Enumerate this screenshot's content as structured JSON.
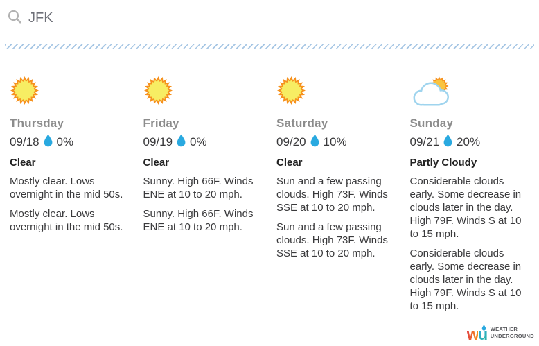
{
  "search": {
    "value": "JFK",
    "icon": "magnifier"
  },
  "days": [
    {
      "name": "Thursday",
      "date": "09/18",
      "precip": "0%",
      "condition": "Clear",
      "icon": "sunny",
      "paragraphs": [
        "Mostly clear. Lows overnight in the mid 50s.",
        "Mostly clear. Lows overnight in the mid 50s."
      ]
    },
    {
      "name": "Friday",
      "date": "09/19",
      "precip": "0%",
      "condition": "Clear",
      "icon": "sunny",
      "paragraphs": [
        "Sunny. High 66F. Winds ENE at 10 to 20 mph.",
        "Sunny. High 66F. Winds ENE at 10 to 20 mph."
      ]
    },
    {
      "name": "Saturday",
      "date": "09/20",
      "precip": "10%",
      "condition": "Clear",
      "icon": "sunny",
      "paragraphs": [
        "Sun and a few passing clouds. High 73F. Winds SSE at 10 to 20 mph.",
        "Sun and a few passing clouds. High 73F. Winds SSE at 10 to 20 mph."
      ]
    },
    {
      "name": "Sunday",
      "date": "09/21",
      "precip": "20%",
      "condition": "Partly Cloudy",
      "icon": "partly-cloudy",
      "paragraphs": [
        "Considerable clouds early. Some decrease in clouds later in the day. High 79F. Winds S at 10 to 15 mph.",
        "Considerable clouds early. Some decrease in clouds later in the day. High 79F. Winds S at 10 to 15 mph."
      ]
    }
  ],
  "footer": {
    "mark_w": "w",
    "mark_u": "u",
    "brand_line1": "WEATHER",
    "brand_line2": "UNDERGROUND"
  },
  "icons": {
    "search": "magnifier",
    "precipitation": "raindrop",
    "clear": "sun-burst",
    "partly_cloudy": "sun-behind-cloud"
  },
  "colors": {
    "accent": "#29a9e0",
    "sun_ray": "#f6921e",
    "sun_core": "#f7ed63",
    "partly_sun_core": "#f9c440",
    "cloud_stroke": "#9fd4ee",
    "divider": "#a6c6e4",
    "day_label": "#8c8c8c",
    "text": "#3a3a3c",
    "heading": "#222222",
    "search_text": "#6e7078",
    "search_icon": "#b3b3b3",
    "logo_text": "#55565a",
    "logo_w_start": "#e23f3f",
    "logo_w_end": "#f7941d",
    "logo_u_start": "#29a9e0",
    "logo_u_end": "#2fb5a0"
  }
}
